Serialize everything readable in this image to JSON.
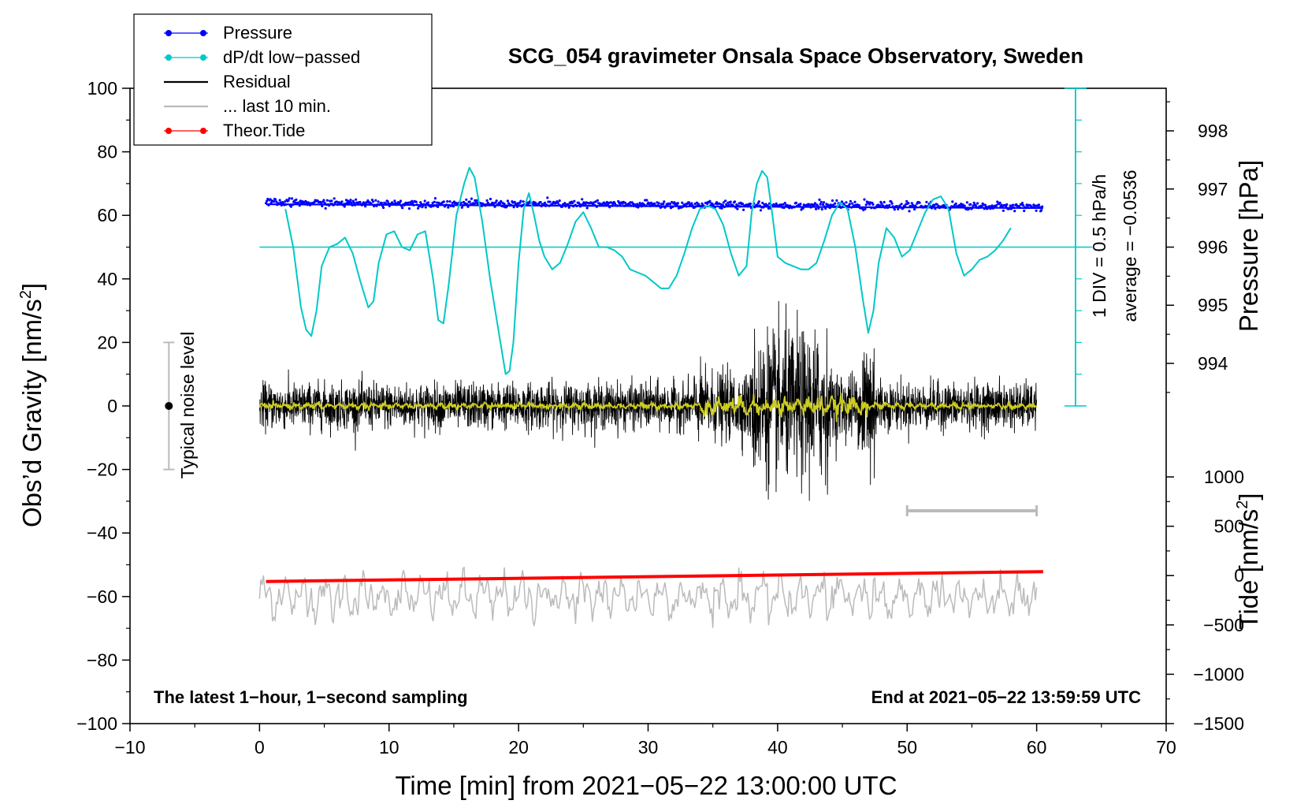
{
  "chart_data": {
    "type": "line",
    "title": "SCG_054 gravimeter Onsala Space Observatory, Sweden",
    "xlabel": "Time [min] from 2021−05−22 13:00:00 UTC",
    "ylabel_main": "Obs’d Gravity [nm/s",
    "ylabel_sup": "2",
    "ylabel_close": "]",
    "ylabel_pressure": "Pressure [hPa]",
    "ylabel_tide": "Tide [nm/s",
    "ylabel_tide_sup": "2",
    "ylabel_tide_close": "]",
    "xlim": [
      -10,
      70
    ],
    "ylim": [
      -100,
      100
    ],
    "x_ticks": [
      -10,
      0,
      10,
      20,
      30,
      40,
      50,
      60,
      70
    ],
    "x_tick_labels": [
      "−10",
      "0",
      "10",
      "20",
      "30",
      "40",
      "50",
      "60",
      "70"
    ],
    "y_ticks": [
      -100,
      -80,
      -60,
      -40,
      -20,
      0,
      20,
      40,
      60,
      80,
      100
    ],
    "y_tick_labels": [
      "−100",
      "−80",
      "−60",
      "−40",
      "−20",
      "0",
      "20",
      "40",
      "60",
      "80",
      "100"
    ],
    "pressure_ticks": [
      994,
      995,
      996,
      997,
      998
    ],
    "pressure_tick_labels": [
      "994",
      "995",
      "996",
      "997",
      "998"
    ],
    "tide_ticks": [
      -1500,
      -1000,
      -500,
      0,
      500,
      1000
    ],
    "tide_tick_labels": [
      "−1500",
      "−1000",
      "−500",
      "0",
      "500",
      "1000"
    ],
    "footer_left": "The latest 1−hour, 1−second sampling",
    "footer_right": "End at 2021−05−22 13:59:59 UTC",
    "scale_label_1": "1 DIV = 0.5 hPa/h",
    "scale_label_2": "average = −0.0536",
    "noise_label": "Typical noise level",
    "noise_bar": {
      "x": -7,
      "center": 0,
      "half_range": 20
    },
    "legend": [
      {
        "label": "Pressure",
        "color": "#0000ff",
        "style": "line-dot"
      },
      {
        "label": "dP/dt low−passed",
        "color": "#00c8c8",
        "style": "line-dot"
      },
      {
        "label": "Residual",
        "color": "#000000",
        "style": "line"
      },
      {
        "label": "... last 10 min.",
        "color": "#bbbbbb",
        "style": "line"
      },
      {
        "label": "Theor.Tide",
        "color": "#ff0000",
        "style": "line-dot"
      }
    ],
    "series": [
      {
        "name": "Pressure",
        "color": "#0000ff",
        "approx_level_nm": 63,
        "x_range": [
          0.5,
          60.5
        ]
      },
      {
        "name": "dP/dt low−passed",
        "color": "#00c8c8",
        "baseline": 50,
        "x": [
          2.0,
          2.6,
          3.2,
          3.6,
          4.0,
          4.4,
          4.8,
          5.4,
          6.0,
          6.6,
          7.2,
          7.8,
          8.4,
          8.8,
          9.2,
          9.8,
          10.4,
          11.0,
          11.6,
          12.2,
          12.8,
          13.4,
          13.8,
          14.2,
          14.6,
          15.2,
          15.8,
          16.2,
          16.6,
          17.2,
          17.8,
          18.4,
          19.0,
          19.3,
          19.6,
          20.0,
          20.4,
          20.8,
          21.2,
          21.6,
          22.0,
          22.6,
          23.2,
          23.8,
          24.4,
          25.0,
          25.6,
          26.2,
          26.8,
          27.4,
          28.0,
          28.6,
          29.2,
          29.8,
          30.4,
          31.0,
          31.6,
          32.2,
          32.8,
          33.4,
          34.0,
          34.6,
          35.2,
          35.8,
          36.4,
          37.0,
          37.6,
          38.0,
          38.4,
          38.8,
          39.2,
          39.6,
          40.0,
          40.6,
          41.2,
          41.8,
          42.4,
          43.0,
          43.6,
          44.2,
          44.8,
          45.4,
          46.0,
          46.6,
          47.0,
          47.4,
          47.8,
          48.4,
          49.0,
          49.6,
          50.2,
          50.8,
          51.4,
          52.0,
          52.6,
          53.2,
          53.8,
          54.4,
          55.0,
          55.6,
          56.2,
          56.8,
          57.4,
          58.0
        ],
        "y": [
          62,
          50,
          31,
          24,
          22,
          30,
          44,
          50,
          51,
          53,
          48,
          39,
          31,
          33,
          45,
          54,
          55,
          50,
          49,
          54,
          55,
          40,
          27,
          26,
          38,
          60,
          70,
          75,
          72,
          58,
          40,
          25,
          10,
          11,
          20,
          45,
          62,
          67,
          60,
          52,
          47,
          43,
          45,
          51,
          58,
          61,
          56,
          50,
          50,
          49,
          47,
          43,
          42,
          41,
          39,
          37,
          37,
          41,
          48,
          56,
          62,
          63,
          62,
          57,
          48,
          41,
          44,
          61,
          70,
          74,
          72,
          60,
          47,
          45,
          44,
          43,
          43,
          45,
          52,
          60,
          64,
          62,
          50,
          33,
          23,
          30,
          45,
          56,
          53,
          47,
          49,
          55,
          61,
          65,
          66,
          62,
          48,
          41,
          43,
          46,
          47,
          49,
          52,
          56
        ]
      },
      {
        "name": "Residual",
        "color": "#000000",
        "noise_std_nm": 3.5,
        "x_range": [
          0,
          60
        ]
      },
      {
        "name": "Residual smoothed",
        "color": "#cccc22",
        "x_range": [
          0,
          60
        ]
      },
      {
        "name": "... last 10 min.",
        "color": "#bbbbbb",
        "offset_nm": -60,
        "x_range": [
          0,
          60
        ]
      },
      {
        "name": "Theor.Tide",
        "color": "#ff0000",
        "tide_start_nms2": -60,
        "tide_end_nms2": 40,
        "x_range": [
          0.5,
          60.5
        ]
      }
    ],
    "gray_scale_bar": {
      "x_range": [
        50,
        60
      ],
      "y": -33
    }
  }
}
